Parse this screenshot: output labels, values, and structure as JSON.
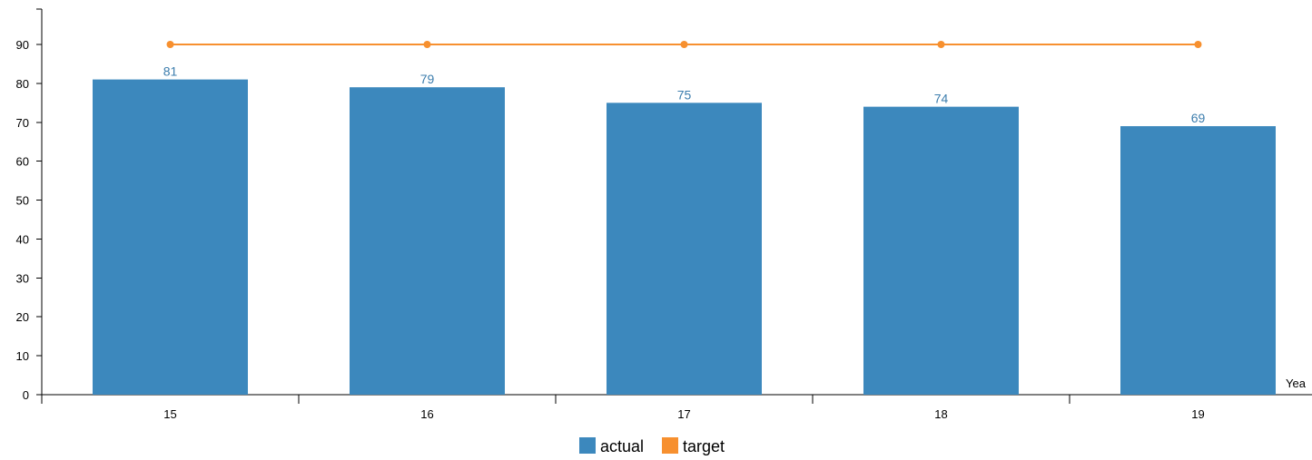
{
  "chart_data": {
    "type": "bar",
    "categories": [
      "15",
      "16",
      "17",
      "18",
      "19"
    ],
    "series": [
      {
        "name": "actual",
        "type": "bar",
        "color": "#3c88bd",
        "values": [
          81,
          79,
          75,
          74,
          69
        ]
      },
      {
        "name": "target",
        "type": "line",
        "color": "#f7902f",
        "values": [
          90,
          90,
          90,
          90,
          90
        ]
      }
    ],
    "data_labels": [
      "81",
      "79",
      "75",
      "74",
      "69"
    ],
    "xlabel": "Yea",
    "ylabel": "",
    "ylim": [
      0,
      90
    ],
    "yticks": [
      "0",
      "10",
      "20",
      "30",
      "40",
      "50",
      "60",
      "70",
      "80",
      "90"
    ],
    "grid": false,
    "legend_position": "bottom-center"
  }
}
